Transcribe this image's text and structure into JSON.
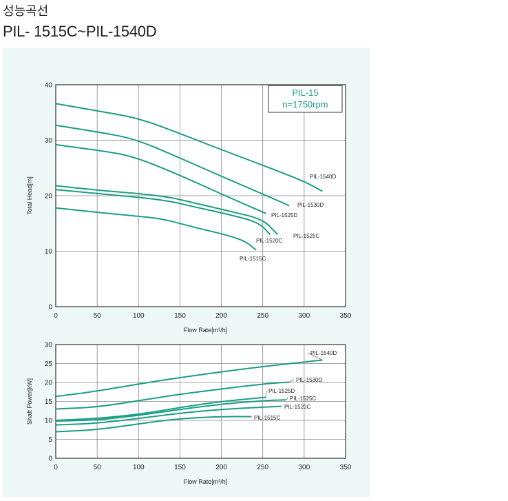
{
  "header": {
    "title_korean": "성능곡선",
    "title_model": "PIL- 1515C~PIL-1540D"
  },
  "colors": {
    "curve": "#1a9e83",
    "panel_bg": "#eef8f6",
    "grid": "#888888",
    "badge_text": "#1a9e83"
  },
  "chart_data": [
    {
      "type": "line",
      "badge": {
        "line1": "PIL-15",
        "line2": "n=1750rpm"
      },
      "xlabel": "Flow Rate[m³/h]",
      "ylabel": "Total Head[m]",
      "xlim": [
        0,
        350
      ],
      "ylim": [
        0,
        40
      ],
      "xticks": [
        0,
        50,
        100,
        150,
        200,
        250,
        300,
        350
      ],
      "yticks": [
        0,
        10,
        20,
        30,
        40
      ],
      "grid": true,
      "series": [
        {
          "name": "PIL-1540D",
          "points": [
            [
              0,
              36.6
            ],
            [
              50,
              35.3
            ],
            [
              100,
              34.0
            ],
            [
              150,
              31.2
            ],
            [
              200,
              28.3
            ],
            [
              250,
              25.5
            ],
            [
              300,
              22.6
            ],
            [
              322,
              20.8
            ]
          ]
        },
        {
          "name": "PIL-1530D",
          "points": [
            [
              0,
              32.7
            ],
            [
              50,
              31.5
            ],
            [
              95,
              30.3
            ],
            [
              150,
              26.8
            ],
            [
              200,
              23.5
            ],
            [
              250,
              20.3
            ],
            [
              282,
              18.2
            ]
          ]
        },
        {
          "name": "PIL-1525D",
          "points": [
            [
              0,
              29.2
            ],
            [
              50,
              28.2
            ],
            [
              92,
              27.2
            ],
            [
              150,
              23.7
            ],
            [
              200,
              20.3
            ],
            [
              254,
              16.8
            ]
          ]
        },
        {
          "name": "PIL-1525C",
          "points": [
            [
              0,
              21.8
            ],
            [
              50,
              21.0
            ],
            [
              130,
              20.0
            ],
            [
              170,
              18.6
            ],
            [
              210,
              17.2
            ],
            [
              250,
              15.8
            ],
            [
              268,
              13.0
            ]
          ]
        },
        {
          "name": "PIL-1520C",
          "points": [
            [
              0,
              21.1
            ],
            [
              50,
              20.4
            ],
            [
              130,
              19.3
            ],
            [
              170,
              17.9
            ],
            [
              210,
              16.6
            ],
            [
              245,
              15.2
            ],
            [
              259,
              13.0
            ]
          ]
        },
        {
          "name": "PIL-1515C",
          "points": [
            [
              0,
              17.8
            ],
            [
              50,
              17.0
            ],
            [
              100,
              16.3
            ],
            [
              130,
              15.8
            ],
            [
              170,
              14.2
            ],
            [
              210,
              12.8
            ],
            [
              230,
              11.7
            ],
            [
              242,
              10.2
            ]
          ]
        }
      ],
      "labels": [
        "PIL-1540D",
        "PIL-1530D",
        "PIL-1525D",
        "PIL-1525C",
        "PIL-1520C",
        "PIL-1515C"
      ]
    },
    {
      "type": "line",
      "xlabel": "Flow Rate[m³/h]",
      "ylabel": "Shaft Power[kW]",
      "xlim": [
        0,
        350
      ],
      "ylim": [
        0,
        30
      ],
      "xticks": [
        0,
        50,
        100,
        150,
        200,
        250,
        300,
        350
      ],
      "yticks": [
        0,
        5,
        10,
        15,
        20,
        25,
        30
      ],
      "grid": true,
      "series": [
        {
          "name": "PIL-1540D",
          "points": [
            [
              0,
              16.3
            ],
            [
              50,
              17.7
            ],
            [
              100,
              19.6
            ],
            [
              150,
              21.3
            ],
            [
              200,
              22.8
            ],
            [
              250,
              24.2
            ],
            [
              300,
              25.4
            ],
            [
              322,
              25.9
            ]
          ]
        },
        {
          "name": "PIL-1530D",
          "points": [
            [
              0,
              13.0
            ],
            [
              50,
              13.5
            ],
            [
              100,
              15.2
            ],
            [
              150,
              16.9
            ],
            [
              200,
              18.3
            ],
            [
              250,
              19.6
            ],
            [
              282,
              20.1
            ]
          ]
        },
        {
          "name": "PIL-1525D",
          "points": [
            [
              0,
              10.0
            ],
            [
              50,
              10.5
            ],
            [
              100,
              11.6
            ],
            [
              150,
              13.4
            ],
            [
              200,
              15.0
            ],
            [
              254,
              16.1
            ]
          ]
        },
        {
          "name": "PIL-1525C",
          "points": [
            [
              0,
              9.8
            ],
            [
              50,
              10.1
            ],
            [
              100,
              11.3
            ],
            [
              150,
              12.9
            ],
            [
              200,
              14.3
            ],
            [
              250,
              15.2
            ],
            [
              278,
              15.4
            ]
          ]
        },
        {
          "name": "PIL-1520C",
          "points": [
            [
              0,
              8.8
            ],
            [
              50,
              9.2
            ],
            [
              100,
              10.5
            ],
            [
              150,
              11.9
            ],
            [
              200,
              12.9
            ],
            [
              250,
              13.5
            ],
            [
              272,
              13.7
            ]
          ]
        },
        {
          "name": "PIL-1515C",
          "points": [
            [
              0,
              7.0
            ],
            [
              50,
              7.5
            ],
            [
              100,
              9.1
            ],
            [
              150,
              10.5
            ],
            [
              200,
              11.0
            ],
            [
              236,
              11.0
            ]
          ]
        }
      ],
      "labels": [
        "PIL-1540D",
        "PIL-1530D",
        "PIL-1525D",
        "PIL-1525C",
        "PIL-1520C",
        "PIL-1515C"
      ]
    }
  ]
}
